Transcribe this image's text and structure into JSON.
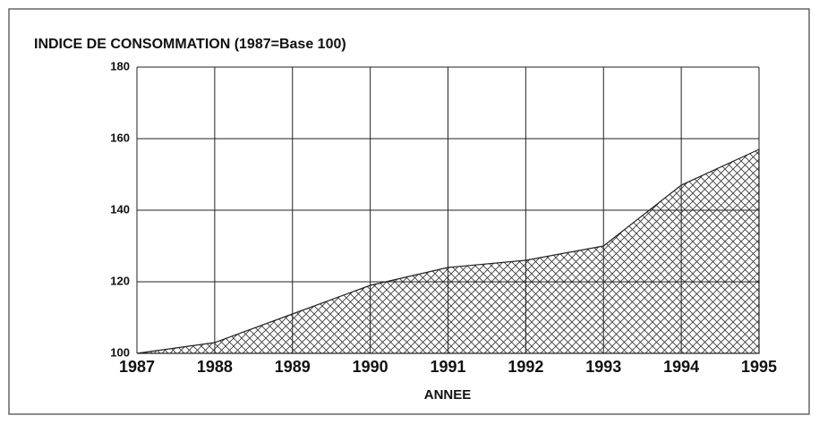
{
  "chart_data": {
    "type": "area",
    "title": "INDICE DE CONSOMMATION (1987=Base 100)",
    "x_label": "ANNEE",
    "x": [
      1987,
      1988,
      1989,
      1990,
      1991,
      1992,
      1993,
      1994,
      1995
    ],
    "values": [
      100,
      103,
      111,
      119,
      124,
      126,
      130,
      147,
      157
    ],
    "color": "#222222",
    "xlim": [
      1987,
      1995
    ],
    "xticks": [
      1987,
      1988,
      1989,
      1990,
      1991,
      1992,
      1993,
      1994,
      1995
    ],
    "ylim": [
      100,
      180
    ],
    "yticks": [
      100,
      120,
      140,
      160,
      180
    ],
    "grid": true
  }
}
